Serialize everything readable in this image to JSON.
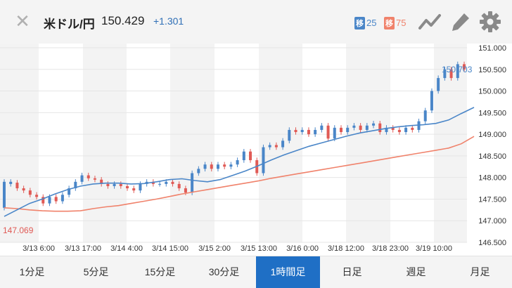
{
  "header": {
    "pair": "米ドル/円",
    "price": "150.429",
    "change": "+1.301",
    "ma_short": {
      "label": "移",
      "value": "25"
    },
    "ma_long": {
      "label": "移",
      "value": "75"
    }
  },
  "chart_data": {
    "type": "candlestick",
    "last_price_label": "150.703",
    "low_label": "147.069",
    "y_ticks": [
      "151.000",
      "150.500",
      "150.000",
      "149.500",
      "149.000",
      "148.500",
      "148.000",
      "147.500",
      "147.000",
      "146.500"
    ],
    "ylim": [
      146.5,
      151.0
    ],
    "x_ticks": [
      "3/13 6:00",
      "3/13 17:00",
      "3/14 4:00",
      "3/14 15:00",
      "3/15 2:00",
      "3/15 13:00",
      "3/16 0:00",
      "3/18 12:00",
      "3/18 23:00",
      "3/19 10:00"
    ],
    "colors": {
      "up": "#4a86c8",
      "down": "#e05a55",
      "ma_short": "#4a86c8",
      "ma_long": "#f0826b"
    },
    "ma_short": [
      147.1,
      147.25,
      147.4,
      147.5,
      147.62,
      147.72,
      147.8,
      147.85,
      147.87,
      147.87,
      147.85,
      147.86,
      147.9,
      147.95,
      147.97,
      147.93,
      147.9,
      147.95,
      148.05,
      148.15,
      148.27,
      148.4,
      148.52,
      148.62,
      148.72,
      148.8,
      148.88,
      148.96,
      149.03,
      149.08,
      149.13,
      149.17,
      149.2,
      149.22,
      149.25,
      149.33,
      149.48,
      149.62
    ],
    "ma_long": [
      147.3,
      147.28,
      147.25,
      147.23,
      147.22,
      147.22,
      147.23,
      147.28,
      147.32,
      147.35,
      147.4,
      147.45,
      147.5,
      147.56,
      147.62,
      147.67,
      147.72,
      147.77,
      147.82,
      147.87,
      147.92,
      147.98,
      148.03,
      148.08,
      148.13,
      148.18,
      148.23,
      148.28,
      148.33,
      148.38,
      148.43,
      148.48,
      148.53,
      148.58,
      148.63,
      148.68,
      148.78,
      148.95
    ],
    "candles": [
      [
        147.3,
        147.9
      ],
      [
        147.85,
        147.9
      ],
      [
        147.88,
        147.75
      ],
      [
        147.75,
        147.7
      ],
      [
        147.7,
        147.6
      ],
      [
        147.6,
        147.55
      ],
      [
        147.55,
        147.4
      ],
      [
        147.4,
        147.55
      ],
      [
        147.55,
        147.45
      ],
      [
        147.45,
        147.6
      ],
      [
        147.6,
        147.75
      ],
      [
        147.75,
        147.9
      ],
      [
        147.9,
        148.05
      ],
      [
        148.05,
        147.98
      ],
      [
        147.98,
        147.95
      ],
      [
        147.95,
        147.85
      ],
      [
        147.85,
        147.8
      ],
      [
        147.8,
        147.85
      ],
      [
        147.85,
        147.8
      ],
      [
        147.8,
        147.75
      ],
      [
        147.75,
        147.7
      ],
      [
        147.7,
        147.85
      ],
      [
        147.85,
        147.9
      ],
      [
        147.9,
        147.85
      ],
      [
        147.85,
        147.85
      ],
      [
        147.85,
        147.9
      ],
      [
        147.9,
        147.85
      ],
      [
        147.85,
        147.75
      ],
      [
        147.75,
        147.65
      ],
      [
        147.65,
        148.1
      ],
      [
        148.1,
        148.2
      ],
      [
        148.2,
        148.3
      ],
      [
        148.3,
        148.2
      ],
      [
        148.2,
        148.3
      ],
      [
        148.3,
        148.25
      ],
      [
        148.25,
        148.3
      ],
      [
        148.3,
        148.4
      ],
      [
        148.4,
        148.6
      ],
      [
        148.6,
        148.4
      ],
      [
        148.4,
        148.1
      ],
      [
        148.1,
        148.7
      ],
      [
        148.7,
        148.75
      ],
      [
        148.75,
        148.7
      ],
      [
        148.7,
        148.85
      ],
      [
        148.85,
        149.1
      ],
      [
        149.1,
        149.05
      ],
      [
        149.05,
        149.1
      ],
      [
        149.1,
        149.0
      ],
      [
        149.0,
        149.1
      ],
      [
        149.1,
        149.2
      ],
      [
        149.2,
        148.9
      ],
      [
        148.9,
        149.15
      ],
      [
        149.15,
        149.05
      ],
      [
        149.05,
        149.15
      ],
      [
        149.15,
        149.2
      ],
      [
        149.2,
        149.1
      ],
      [
        149.1,
        149.2
      ],
      [
        149.2,
        149.25
      ],
      [
        149.25,
        149.05
      ],
      [
        149.05,
        149.15
      ],
      [
        149.15,
        149.1
      ],
      [
        149.1,
        149.05
      ],
      [
        149.05,
        149.15
      ],
      [
        149.15,
        149.1
      ],
      [
        149.1,
        149.3
      ],
      [
        149.3,
        149.55
      ],
      [
        149.55,
        150.0
      ],
      [
        150.0,
        150.3
      ],
      [
        150.3,
        150.5
      ],
      [
        150.5,
        150.3
      ],
      [
        150.3,
        150.62
      ],
      [
        150.62,
        150.5
      ]
    ]
  },
  "tabs": [
    "1分足",
    "5分足",
    "15分足",
    "30分足",
    "1時間足",
    "日足",
    "週足",
    "月足"
  ],
  "active_tab": 4
}
